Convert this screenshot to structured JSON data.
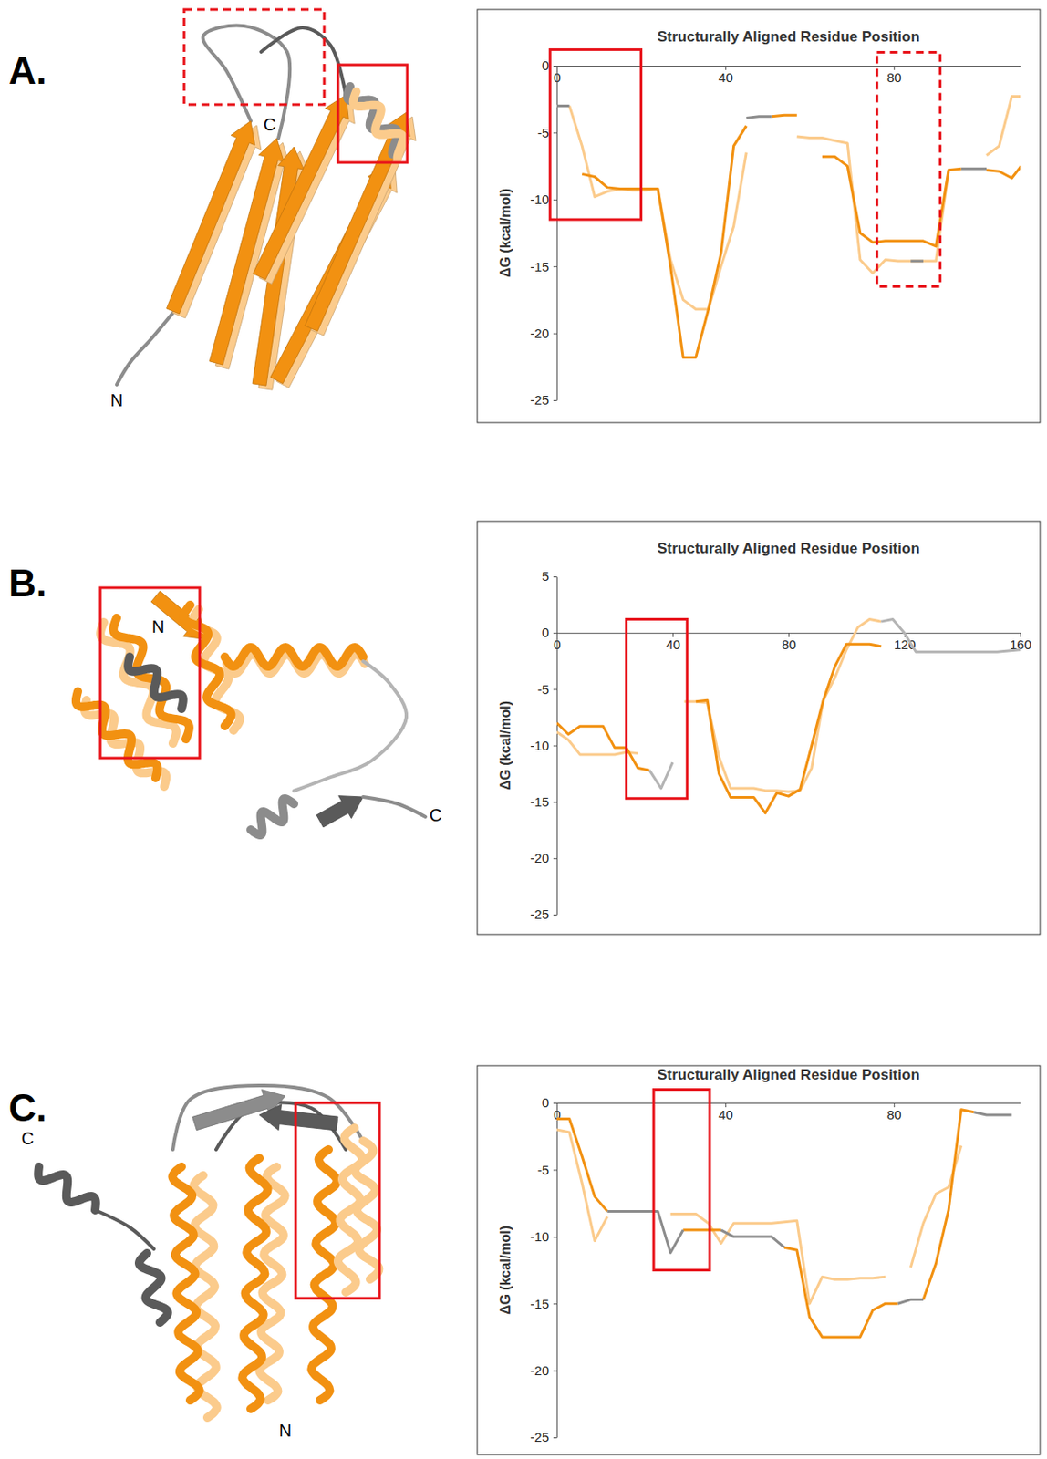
{
  "chart_data": [
    {
      "type": "line",
      "panel": "A.",
      "xlabel": "Structurally Aligned Residue Position",
      "ylabel": "ΔG (kcal/mol)",
      "x": [
        0,
        3,
        6,
        9,
        12,
        15,
        18,
        21,
        24,
        27,
        30,
        33,
        36,
        39,
        42,
        45,
        48,
        51,
        54,
        57,
        60,
        63,
        66,
        69,
        72,
        75,
        78,
        81,
        84,
        87,
        90,
        93,
        96,
        99,
        102,
        105,
        108,
        111
      ],
      "xlim": [
        0,
        110
      ],
      "xticks": [
        0,
        40,
        80
      ],
      "ylim": [
        -25,
        0
      ],
      "yticks": [
        0,
        -5,
        -10,
        -15,
        -20,
        -25
      ],
      "series": [
        {
          "color": "#fbcb8c",
          "values": [
            null,
            -3,
            -6,
            -9.8,
            -9.4,
            -9.2,
            -9.3,
            -9.3,
            -9.2,
            -14.5,
            -17.5,
            -18.2,
            -18.2,
            -15,
            -12,
            -6.5,
            null,
            null,
            null,
            -5.3,
            -5.4,
            -5.4,
            -5.6,
            -5.8,
            -14.5,
            -15.5,
            -14.5,
            -14.6,
            -14.6,
            -14.6,
            -14.6,
            -7.9,
            null,
            null,
            -6.7,
            -6,
            -2.3,
            -2.3
          ]
        },
        {
          "color": "#f29111",
          "values": [
            null,
            null,
            -8.1,
            -8.3,
            -9.1,
            -9.2,
            -9.2,
            -9.2,
            -9.2,
            -15,
            -21.8,
            -21.8,
            -18.2,
            -14,
            -6,
            -4.5,
            null,
            -3.8,
            -3.7,
            -3.7,
            null,
            -6.8,
            -6.8,
            -7.5,
            -12.5,
            -13.2,
            -13.1,
            -13.1,
            -13.1,
            -13.1,
            -13.5,
            -7.8,
            -7.7,
            null,
            -7.8,
            -7.9,
            -8.4,
            -7.2
          ]
        },
        {
          "color": "#8c8c8c",
          "values": [
            -3,
            -3,
            null,
            null,
            null,
            null,
            null,
            null,
            null,
            null,
            null,
            null,
            null,
            null,
            null,
            -3.9,
            -3.8,
            -3.8,
            null,
            null,
            null,
            null,
            null,
            null,
            null,
            null,
            null,
            null,
            -14.6,
            -14.6,
            null,
            null,
            -7.7,
            -7.7,
            -7.7,
            null,
            null,
            null
          ]
        }
      ],
      "highlights": [
        {
          "x": [
            -1.6,
            20
          ],
          "y": [
            -11.5,
            1.2
          ],
          "line_style": "solid"
        },
        {
          "x": [
            76,
            91
          ],
          "y": [
            -16.5,
            1.0
          ],
          "line_style": "dashed"
        }
      ]
    },
    {
      "type": "line",
      "panel": "B.",
      "xlabel": "Structurally Aligned Residue Position",
      "ylabel": "ΔG (kcal/mol)",
      "x": [
        0,
        4,
        8,
        12,
        16,
        20,
        24,
        28,
        32,
        36,
        40,
        44,
        48,
        52,
        56,
        60,
        64,
        68,
        72,
        76,
        80,
        84,
        88,
        92,
        96,
        100,
        104,
        108,
        112,
        116,
        120,
        124,
        128,
        132,
        136,
        140,
        144,
        148,
        152,
        156,
        160
      ],
      "xlim": [
        0,
        160
      ],
      "xticks": [
        0,
        40,
        80,
        120,
        160
      ],
      "ylim": [
        -25,
        5
      ],
      "yticks": [
        5,
        0,
        -5,
        -10,
        -15,
        -20,
        -25
      ],
      "series": [
        {
          "color": "#fbcb8c",
          "values": [
            -8.8,
            -9.5,
            -10.8,
            -10.8,
            -10.8,
            -10.8,
            -10.6,
            -10.7,
            null,
            null,
            null,
            -6.1,
            -6.1,
            -6.2,
            -11,
            -13.8,
            -13.8,
            -13.8,
            -14,
            -14,
            -14.1,
            -14,
            -12,
            -6,
            -4,
            -1.5,
            0.5,
            1.2,
            1.0,
            null,
            null,
            null,
            null,
            null,
            null,
            null,
            null,
            null,
            null,
            null,
            null
          ]
        },
        {
          "color": "#f29111",
          "values": [
            -8,
            -9,
            -8.3,
            -8.3,
            -8.3,
            -10.2,
            -10.2,
            -12,
            -12.2,
            null,
            null,
            null,
            -6.1,
            -6,
            -12.5,
            -14.6,
            -14.6,
            -14.6,
            -16,
            -14.2,
            -14.5,
            -13.9,
            -10,
            -6,
            -3,
            -1,
            -1,
            -1,
            -1.2,
            null,
            null,
            null,
            null,
            null,
            null,
            null,
            null,
            null,
            null,
            null,
            null
          ]
        },
        {
          "color": "#b4b4b4",
          "values": [
            null,
            null,
            null,
            null,
            null,
            null,
            null,
            null,
            -12.2,
            -13.8,
            -11.5,
            null,
            null,
            null,
            null,
            null,
            null,
            null,
            null,
            null,
            null,
            null,
            null,
            null,
            null,
            null,
            null,
            null,
            1.0,
            1.2,
            0,
            -1.7,
            -1.7,
            -1.7,
            -1.7,
            -1.7,
            -1.7,
            -1.7,
            -1.7,
            -1.6,
            -1.5
          ]
        }
      ],
      "highlights": [
        {
          "x": [
            24,
            45
          ],
          "y": [
            -14.7,
            1.2
          ],
          "line_style": "solid"
        }
      ]
    },
    {
      "type": "line",
      "panel": "C.",
      "xlabel": "Structurally Aligned Residue Position",
      "ylabel": "ΔG (kcal/mol)",
      "x": [
        0,
        3,
        6,
        9,
        12,
        15,
        18,
        21,
        24,
        27,
        30,
        33,
        36,
        39,
        42,
        45,
        48,
        51,
        54,
        57,
        60,
        63,
        66,
        69,
        72,
        75,
        78,
        81,
        84,
        87,
        90,
        93,
        96,
        99,
        102,
        105,
        108
      ],
      "xlim": [
        0,
        110
      ],
      "xticks": [
        0,
        40,
        80
      ],
      "ylim": [
        -25,
        0
      ],
      "yticks": [
        0,
        -5,
        -10,
        -15,
        -20,
        -25
      ],
      "series": [
        {
          "color": "#fbcb8c",
          "values": [
            -2,
            -2.2,
            -6,
            -10.3,
            -8.5,
            null,
            null,
            null,
            null,
            -8.3,
            -8.3,
            -8.3,
            -9,
            -10.5,
            -9,
            -9,
            -9,
            -9,
            -8.9,
            -8.8,
            -15,
            -13,
            -13.2,
            -13.2,
            -13.1,
            -13.1,
            -13,
            null,
            -12.3,
            -9,
            -6.8,
            -6.3,
            -3.2,
            null,
            null,
            null,
            null
          ]
        },
        {
          "color": "#f29111",
          "values": [
            -1.2,
            -1.2,
            -4,
            -7,
            -8.1,
            null,
            null,
            null,
            null,
            null,
            -9.5,
            -9.5,
            -9.5,
            -9.5,
            null,
            null,
            null,
            null,
            -10.8,
            -11,
            -16,
            -17.5,
            -17.5,
            -17.5,
            -17.5,
            -15.5,
            -15,
            -15,
            null,
            -14.7,
            -12,
            -8,
            -0.5,
            -0.7,
            null,
            null,
            null
          ]
        },
        {
          "color": "#8c8c8c",
          "values": [
            null,
            null,
            null,
            null,
            -8.1,
            -8.1,
            -8.1,
            -8.1,
            -8.1,
            -11.2,
            -9.5,
            null,
            null,
            -9.5,
            -10,
            -10,
            -10,
            -10,
            -10.8,
            null,
            null,
            null,
            null,
            null,
            null,
            null,
            null,
            -15,
            -14.7,
            -14.7,
            null,
            null,
            null,
            -0.7,
            -0.9,
            -0.9,
            -0.9
          ]
        }
      ],
      "highlights": [
        {
          "x": [
            23,
            36.3
          ],
          "y": [
            -12.5,
            1.0
          ],
          "line_style": "solid"
        }
      ]
    }
  ],
  "structures": [
    {
      "labels": [
        "C",
        "N"
      ]
    },
    {
      "labels": [
        "N",
        "C"
      ]
    },
    {
      "labels": [
        "C",
        "N"
      ]
    }
  ]
}
